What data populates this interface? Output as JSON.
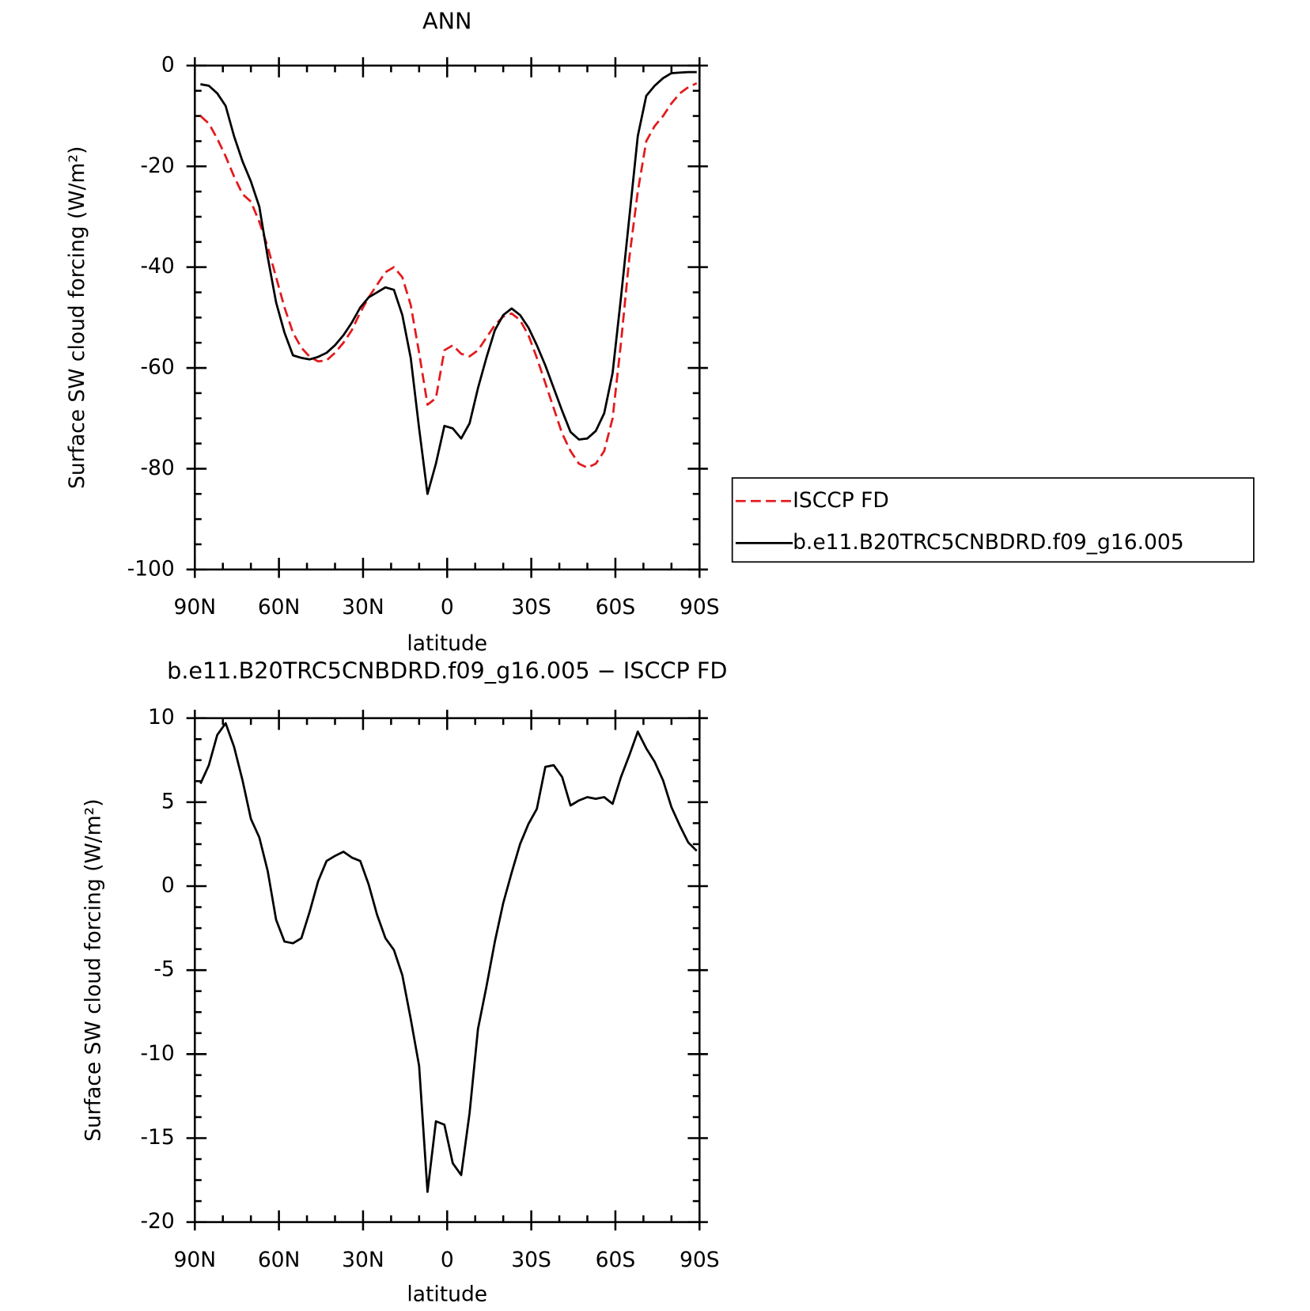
{
  "chart_data": [
    {
      "type": "line",
      "title": "ANN",
      "xlabel": "latitude",
      "ylabel": "Surface SW cloud forcing (W/m²)",
      "x": [
        88,
        85,
        82,
        79,
        76,
        73,
        70,
        67,
        64,
        61,
        58,
        55,
        52,
        49,
        46,
        43,
        40,
        37,
        34,
        31,
        28,
        25,
        22,
        19,
        16,
        13,
        10,
        7,
        4,
        1,
        -2,
        -5,
        -8,
        -11,
        -14,
        -17,
        -20,
        -23,
        -26,
        -29,
        -32,
        -35,
        -38,
        -41,
        -44,
        -47,
        -50,
        -53,
        -56,
        -59,
        -62,
        -65,
        -68,
        -71,
        -74,
        -77,
        -80,
        -83,
        -86,
        -89
      ],
      "series": [
        {
          "name": "ISCCP FD",
          "color": "#e31a1c",
          "dashed": true,
          "values": [
            -10,
            -11.5,
            -14.5,
            -18,
            -22,
            -25.5,
            -27,
            -31,
            -36,
            -42,
            -48,
            -53,
            -56,
            -57.8,
            -58.7,
            -58.5,
            -57,
            -55,
            -52.5,
            -49,
            -46,
            -43.5,
            -41,
            -40,
            -42,
            -47.5,
            -57,
            -67.3,
            -66,
            -56.5,
            -55.5,
            -57.2,
            -57.7,
            -56.5,
            -54,
            -51.5,
            -49.8,
            -49.2,
            -50.5,
            -53.5,
            -58,
            -63,
            -68,
            -73,
            -76.5,
            -79,
            -79.8,
            -79,
            -76.5,
            -70,
            -55,
            -38,
            -25,
            -15,
            -12,
            -10,
            -7.5,
            -5.5,
            -4.3,
            -3.5
          ]
        },
        {
          "name": "b.e11.B20TRC5CNBDRD.f09_g16.005",
          "color": "#000000",
          "dashed": false,
          "values": [
            -3.7,
            -4,
            -5.5,
            -8,
            -14,
            -19,
            -23,
            -28,
            -38,
            -47,
            -53,
            -57.5,
            -58,
            -58.3,
            -57.8,
            -57,
            -55.5,
            -53.5,
            -51,
            -48,
            -46,
            -45,
            -44,
            -44.5,
            -49.5,
            -58,
            -72,
            -85,
            -79,
            -71.5,
            -72,
            -74,
            -71,
            -64,
            -58,
            -52.5,
            -49.5,
            -48.2,
            -49.5,
            -52,
            -55.5,
            -59.5,
            -64,
            -68.5,
            -72.7,
            -74.2,
            -74,
            -72.5,
            -69,
            -61,
            -46,
            -30,
            -14,
            -6,
            -4,
            -2.5,
            -1.5,
            -1.4,
            -1.3,
            -1.3
          ]
        }
      ],
      "xlim": [
        90,
        -90
      ],
      "xticks": [
        {
          "value": 90,
          "label": "90N"
        },
        {
          "value": 60,
          "label": "60N"
        },
        {
          "value": 30,
          "label": "30N"
        },
        0,
        {
          "value": -30,
          "label": "30S"
        },
        {
          "value": -60,
          "label": "60S"
        },
        {
          "value": -90,
          "label": "90S"
        }
      ],
      "ylim": [
        -100,
        0
      ],
      "yticks": [
        0,
        -20,
        -40,
        -60,
        -80,
        -100
      ],
      "legend": "right"
    },
    {
      "type": "line",
      "title": "b.e11.B20TRC5CNBDRD.f09_g16.005 − ISCCP FD",
      "xlabel": "latitude",
      "ylabel": "Surface SW cloud forcing (W/m²)",
      "x": [
        88,
        85,
        82,
        79,
        76,
        73,
        70,
        67,
        64,
        61,
        58,
        55,
        52,
        49,
        46,
        43,
        40,
        37,
        34,
        31,
        28,
        25,
        22,
        19,
        16,
        13,
        10,
        7,
        4,
        1,
        -2,
        -5,
        -8,
        -11,
        -14,
        -17,
        -20,
        -23,
        -26,
        -29,
        -32,
        -35,
        -38,
        -41,
        -44,
        -47,
        -50,
        -53,
        -56,
        -59,
        -62,
        -65,
        -68,
        -71,
        -74,
        -77,
        -80,
        -83,
        -86,
        -89
      ],
      "values": [
        6.1,
        7.2,
        9,
        9.7,
        8.3,
        6.3,
        4,
        2.9,
        0.9,
        -2,
        -3.3,
        -3.4,
        -3.1,
        -1.5,
        0.3,
        1.5,
        1.8,
        2.05,
        1.7,
        1.5,
        0.1,
        -1.7,
        -3.1,
        -3.8,
        -5.3,
        -7.9,
        -10.7,
        -18.2,
        -14,
        -14.2,
        -16.5,
        -17.2,
        -13.5,
        -8.5,
        -6,
        -3.3,
        -1,
        0.8,
        2.5,
        3.7,
        4.6,
        7.1,
        7.2,
        6.5,
        4.8,
        5.1,
        5.3,
        5.2,
        5.3,
        4.9,
        6.5,
        7.8,
        9.2,
        8.2,
        7.4,
        6.3,
        4.7,
        3.6,
        2.6,
        2.1
      ],
      "color": "#000000",
      "xlim": [
        90,
        -90
      ],
      "xticks": [
        {
          "value": 90,
          "label": "90N"
        },
        {
          "value": 60,
          "label": "60N"
        },
        {
          "value": 30,
          "label": "30N"
        },
        0,
        {
          "value": -30,
          "label": "30S"
        },
        {
          "value": -60,
          "label": "60S"
        },
        {
          "value": -90,
          "label": "90S"
        }
      ],
      "ylim": [
        -20,
        10
      ],
      "yticks": [
        10,
        5,
        0,
        -5,
        -10,
        -15,
        -20
      ]
    }
  ]
}
